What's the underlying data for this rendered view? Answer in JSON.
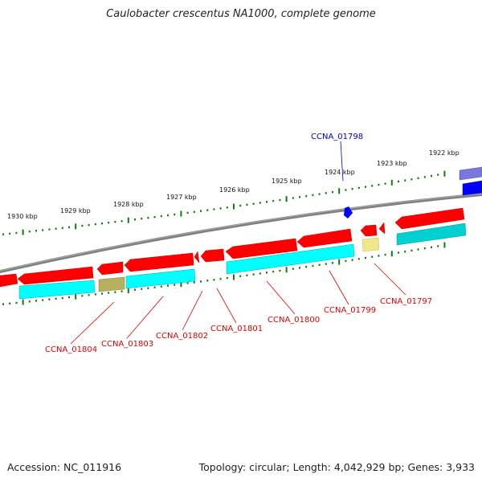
{
  "title": "Caulobacter crescentus NA1000, complete genome",
  "footer": {
    "accession": "Accession: NC_011916",
    "summary": "Topology: circular; Length: 4,042,929 bp; Genes: 3,933"
  },
  "colors": {
    "backbone": "#808080",
    "forward_cds": "#ff0000",
    "reverse_cds": "#00ffff",
    "ticks": "#117a11",
    "label_red": "#dd0000",
    "label_blue": "#0000cc",
    "highlight": "#0000ff"
  },
  "kbp_labels": [
    "1930 kbp",
    "1929 kbp",
    "1928 kbp",
    "1927 kbp",
    "1926 kbp",
    "1925 kbp",
    "1924 kbp",
    "1923 kbp",
    "1922 kbp"
  ],
  "gene_labels": [
    {
      "name": "CCNA_01804",
      "color": "red"
    },
    {
      "name": "CCNA_01803",
      "color": "red"
    },
    {
      "name": "CCNA_01802",
      "color": "red"
    },
    {
      "name": "CCNA_01801",
      "color": "red"
    },
    {
      "name": "CCNA_01800",
      "color": "red"
    },
    {
      "name": "CCNA_01799",
      "color": "red"
    },
    {
      "name": "CCNA_01797",
      "color": "red"
    },
    {
      "name": "CCNA_01798",
      "color": "blue"
    }
  ]
}
